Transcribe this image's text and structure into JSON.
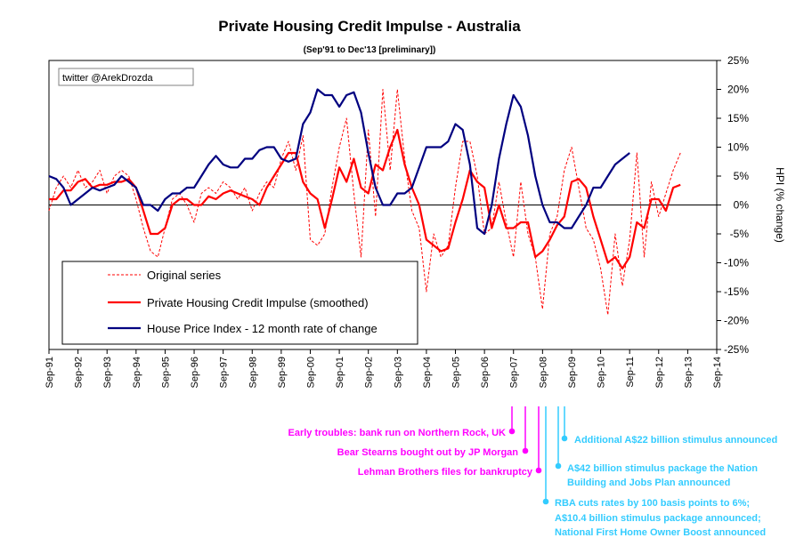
{
  "chart_data": {
    "type": "line",
    "title": "Private Housing Credit Impulse - Australia",
    "subtitle": "(Sep'91 to Dec'13 [preliminary])",
    "credit": "twitter @ArekDrozda",
    "ylabel_right": "HPI (% change)",
    "ylim": [
      -25,
      25
    ],
    "y_ticks": [
      "25%",
      "20%",
      "15%",
      "10%",
      "5%",
      "0%",
      "-5%",
      "-10%",
      "-15%",
      "-20%",
      "-25%"
    ],
    "xlim": [
      1991.75,
      2014.75
    ],
    "x_ticks": [
      "Sep-91",
      "Sep-92",
      "Sep-93",
      "Sep-94",
      "Sep-95",
      "Sep-96",
      "Sep-97",
      "Sep-98",
      "Sep-99",
      "Sep-00",
      "Sep-01",
      "Sep-02",
      "Sep-03",
      "Sep-04",
      "Sep-05",
      "Sep-06",
      "Sep-07",
      "Sep-08",
      "Sep-09",
      "Sep-10",
      "Sep-11",
      "Sep-12",
      "Sep-13",
      "Sep-14"
    ],
    "legend_position": "bottom-left",
    "series": [
      {
        "name": "Original series",
        "color": "#ff0000",
        "style": "dashed",
        "points": [
          [
            1991.75,
            -1
          ],
          [
            1992.0,
            3
          ],
          [
            1992.25,
            5
          ],
          [
            1992.5,
            3
          ],
          [
            1992.75,
            6
          ],
          [
            1993.0,
            3
          ],
          [
            1993.25,
            4
          ],
          [
            1993.5,
            6
          ],
          [
            1993.75,
            2
          ],
          [
            1994.0,
            5
          ],
          [
            1994.25,
            6
          ],
          [
            1994.5,
            5
          ],
          [
            1994.75,
            1
          ],
          [
            1995.0,
            -4
          ],
          [
            1995.25,
            -8
          ],
          [
            1995.5,
            -9
          ],
          [
            1995.75,
            -4
          ],
          [
            1996.0,
            1
          ],
          [
            1996.25,
            2
          ],
          [
            1996.5,
            0
          ],
          [
            1996.75,
            -3
          ],
          [
            1997.0,
            2
          ],
          [
            1997.25,
            3
          ],
          [
            1997.5,
            2
          ],
          [
            1997.75,
            4
          ],
          [
            1998.0,
            3
          ],
          [
            1998.25,
            1
          ],
          [
            1998.5,
            3
          ],
          [
            1998.75,
            -1
          ],
          [
            1999.0,
            2
          ],
          [
            1999.25,
            4
          ],
          [
            1999.5,
            3
          ],
          [
            1999.75,
            8
          ],
          [
            2000.0,
            11
          ],
          [
            2000.25,
            6
          ],
          [
            2000.5,
            12
          ],
          [
            2000.75,
            -6
          ],
          [
            2001.0,
            -7
          ],
          [
            2001.25,
            -5
          ],
          [
            2001.5,
            3
          ],
          [
            2001.75,
            10
          ],
          [
            2002.0,
            15
          ],
          [
            2002.25,
            2
          ],
          [
            2002.5,
            -9
          ],
          [
            2002.75,
            13
          ],
          [
            2003.0,
            -2
          ],
          [
            2003.25,
            20
          ],
          [
            2003.5,
            6
          ],
          [
            2003.75,
            20
          ],
          [
            2004.0,
            8
          ],
          [
            2004.25,
            -1
          ],
          [
            2004.5,
            -4
          ],
          [
            2004.75,
            -15
          ],
          [
            2005.0,
            -5
          ],
          [
            2005.25,
            -9
          ],
          [
            2005.5,
            -7
          ],
          [
            2005.75,
            3
          ],
          [
            2006.0,
            11
          ],
          [
            2006.25,
            11
          ],
          [
            2006.5,
            5
          ],
          [
            2006.75,
            -5
          ],
          [
            2007.0,
            -4
          ],
          [
            2007.25,
            4
          ],
          [
            2007.5,
            -3
          ],
          [
            2007.75,
            -9
          ],
          [
            2008.0,
            4
          ],
          [
            2008.25,
            -5
          ],
          [
            2008.5,
            -9
          ],
          [
            2008.75,
            -18
          ],
          [
            2009.0,
            -5
          ],
          [
            2009.25,
            -2
          ],
          [
            2009.5,
            6
          ],
          [
            2009.75,
            10
          ],
          [
            2010.0,
            3
          ],
          [
            2010.25,
            -4
          ],
          [
            2010.5,
            -6
          ],
          [
            2010.75,
            -11
          ],
          [
            2011.0,
            -19
          ],
          [
            2011.25,
            -5
          ],
          [
            2011.5,
            -14
          ],
          [
            2011.75,
            -6
          ],
          [
            2012.0,
            9
          ],
          [
            2012.25,
            -9
          ],
          [
            2012.5,
            4
          ],
          [
            2012.75,
            -2
          ],
          [
            2013.0,
            2
          ],
          [
            2013.25,
            6
          ],
          [
            2013.5,
            9
          ]
        ]
      },
      {
        "name": "Private Housing Credit Impulse (smoothed)",
        "color": "#ff0000",
        "style": "solid",
        "points": [
          [
            1991.75,
            1
          ],
          [
            1992.0,
            1
          ],
          [
            1992.25,
            2.5
          ],
          [
            1992.5,
            2.5
          ],
          [
            1992.75,
            4
          ],
          [
            1993.0,
            4.5
          ],
          [
            1993.25,
            3
          ],
          [
            1993.5,
            3.5
          ],
          [
            1993.75,
            3.5
          ],
          [
            1994.0,
            4
          ],
          [
            1994.25,
            4
          ],
          [
            1994.5,
            4.5
          ],
          [
            1994.75,
            3
          ],
          [
            1995.0,
            -1
          ],
          [
            1995.25,
            -5
          ],
          [
            1995.5,
            -5
          ],
          [
            1995.75,
            -4
          ],
          [
            1996.0,
            0
          ],
          [
            1996.25,
            1
          ],
          [
            1996.5,
            1
          ],
          [
            1996.75,
            0
          ],
          [
            1997.0,
            0
          ],
          [
            1997.25,
            1.5
          ],
          [
            1997.5,
            1
          ],
          [
            1997.75,
            2
          ],
          [
            1998.0,
            2.5
          ],
          [
            1998.25,
            2
          ],
          [
            1998.5,
            1.5
          ],
          [
            1998.75,
            1
          ],
          [
            1999.0,
            0
          ],
          [
            1999.25,
            3
          ],
          [
            1999.5,
            5
          ],
          [
            1999.75,
            7
          ],
          [
            2000.0,
            9
          ],
          [
            2000.25,
            9
          ],
          [
            2000.5,
            4
          ],
          [
            2000.75,
            2
          ],
          [
            2001.0,
            1
          ],
          [
            2001.25,
            -4
          ],
          [
            2001.5,
            1
          ],
          [
            2001.75,
            6.5
          ],
          [
            2002.0,
            4
          ],
          [
            2002.25,
            8
          ],
          [
            2002.5,
            3
          ],
          [
            2002.75,
            2
          ],
          [
            2003.0,
            7
          ],
          [
            2003.25,
            6
          ],
          [
            2003.5,
            10
          ],
          [
            2003.75,
            13
          ],
          [
            2004.0,
            7
          ],
          [
            2004.25,
            3
          ],
          [
            2004.5,
            0
          ],
          [
            2004.75,
            -6
          ],
          [
            2005.0,
            -7
          ],
          [
            2005.25,
            -8
          ],
          [
            2005.5,
            -7.5
          ],
          [
            2005.75,
            -3
          ],
          [
            2006.0,
            1
          ],
          [
            2006.25,
            6
          ],
          [
            2006.5,
            4
          ],
          [
            2006.75,
            3
          ],
          [
            2007.0,
            -4
          ],
          [
            2007.25,
            0
          ],
          [
            2007.5,
            -4
          ],
          [
            2007.75,
            -4
          ],
          [
            2008.0,
            -3
          ],
          [
            2008.25,
            -3
          ],
          [
            2008.5,
            -9
          ],
          [
            2008.75,
            -8
          ],
          [
            2009.0,
            -6
          ],
          [
            2009.25,
            -3.5
          ],
          [
            2009.5,
            -2
          ],
          [
            2009.75,
            4
          ],
          [
            2010.0,
            4.5
          ],
          [
            2010.25,
            3
          ],
          [
            2010.5,
            -2
          ],
          [
            2010.75,
            -6
          ],
          [
            2011.0,
            -10
          ],
          [
            2011.25,
            -9
          ],
          [
            2011.5,
            -11
          ],
          [
            2011.75,
            -9
          ],
          [
            2012.0,
            -3
          ],
          [
            2012.25,
            -4
          ],
          [
            2012.5,
            1
          ],
          [
            2012.75,
            1
          ],
          [
            2013.0,
            -1
          ],
          [
            2013.25,
            3
          ],
          [
            2013.5,
            3.5
          ]
        ]
      },
      {
        "name": "House Price Index - 12 month rate of change",
        "color": "#000080",
        "style": "solid",
        "points": [
          [
            1991.75,
            5
          ],
          [
            1992.0,
            4.5
          ],
          [
            1992.25,
            3
          ],
          [
            1992.5,
            0
          ],
          [
            1992.75,
            1
          ],
          [
            1993.0,
            2
          ],
          [
            1993.25,
            3
          ],
          [
            1993.5,
            2.5
          ],
          [
            1993.75,
            3
          ],
          [
            1994.0,
            3.5
          ],
          [
            1994.25,
            5
          ],
          [
            1994.5,
            4
          ],
          [
            1994.75,
            3
          ],
          [
            1995.0,
            0
          ],
          [
            1995.25,
            0
          ],
          [
            1995.5,
            -1
          ],
          [
            1995.75,
            1
          ],
          [
            1996.0,
            2
          ],
          [
            1996.25,
            2
          ],
          [
            1996.5,
            3
          ],
          [
            1996.75,
            3
          ],
          [
            1997.0,
            5
          ],
          [
            1997.25,
            7
          ],
          [
            1997.5,
            8.5
          ],
          [
            1997.75,
            7
          ],
          [
            1998.0,
            6.5
          ],
          [
            1998.25,
            6.5
          ],
          [
            1998.5,
            8
          ],
          [
            1998.75,
            8
          ],
          [
            1999.0,
            9.5
          ],
          [
            1999.25,
            10
          ],
          [
            1999.5,
            10
          ],
          [
            1999.75,
            8
          ],
          [
            2000.0,
            7.5
          ],
          [
            2000.25,
            8
          ],
          [
            2000.5,
            14
          ],
          [
            2000.75,
            16
          ],
          [
            2001.0,
            20
          ],
          [
            2001.25,
            19
          ],
          [
            2001.5,
            19
          ],
          [
            2001.75,
            17
          ],
          [
            2002.0,
            19
          ],
          [
            2002.25,
            19.5
          ],
          [
            2002.5,
            16
          ],
          [
            2002.75,
            9
          ],
          [
            2003.0,
            3
          ],
          [
            2003.25,
            0
          ],
          [
            2003.5,
            0
          ],
          [
            2003.75,
            2
          ],
          [
            2004.0,
            2
          ],
          [
            2004.25,
            3
          ],
          [
            2004.5,
            6.5
          ],
          [
            2004.75,
            10
          ],
          [
            2005.0,
            10
          ],
          [
            2005.25,
            10
          ],
          [
            2005.5,
            11
          ],
          [
            2005.75,
            14
          ],
          [
            2006.0,
            13
          ],
          [
            2006.25,
            7
          ],
          [
            2006.5,
            -4
          ],
          [
            2006.75,
            -5
          ],
          [
            2007.0,
            0
          ],
          [
            2007.25,
            8
          ],
          [
            2007.5,
            14
          ],
          [
            2007.75,
            19
          ],
          [
            2008.0,
            17
          ],
          [
            2008.25,
            12
          ],
          [
            2008.5,
            5
          ],
          [
            2008.75,
            0
          ],
          [
            2009.0,
            -3
          ],
          [
            2009.25,
            -3
          ],
          [
            2009.5,
            -4
          ],
          [
            2009.75,
            -4
          ],
          [
            2010.0,
            -2
          ],
          [
            2010.25,
            0
          ],
          [
            2010.5,
            3
          ],
          [
            2010.75,
            3
          ],
          [
            2011.0,
            5
          ],
          [
            2011.25,
            7
          ],
          [
            2011.5,
            8
          ],
          [
            2011.75,
            9
          ]
        ]
      }
    ],
    "annotations": [
      {
        "text": "Early troubles: bank run on Northern Rock, UK",
        "color": "#ff00ff"
      },
      {
        "text": "Bear Stearns bought out by JP Morgan",
        "color": "#ff00ff"
      },
      {
        "text": "Lehman Brothers files for bankruptcy",
        "color": "#ff00ff"
      },
      {
        "text": "RBA cuts rates by 100 basis points to 6%;",
        "color": "#33ccff"
      },
      {
        "text": "A$10.4 billion stimulus package announced;",
        "color": "#33ccff"
      },
      {
        "text": "National First Home Owner Boost announced",
        "color": "#33ccff"
      },
      {
        "text": "A$42 billion stimulus package the Nation",
        "color": "#33ccff"
      },
      {
        "text": "Building and Jobs Plan announced",
        "color": "#33ccff"
      },
      {
        "text": "Additional A$22 billion stimulus announced",
        "color": "#33ccff"
      }
    ]
  }
}
